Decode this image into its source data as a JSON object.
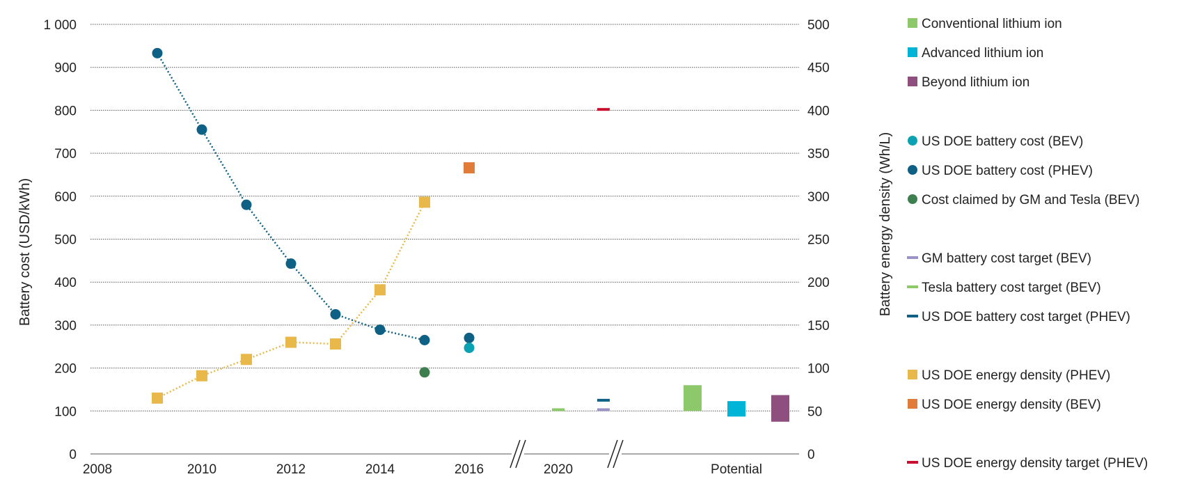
{
  "chart_data": {
    "type": "scatter",
    "title": "",
    "ylabel": "Battery cost (USD/kWh)",
    "y2label": "Battery energy density (Wh/L)",
    "ylim": [
      0,
      1000
    ],
    "y2lim": [
      0,
      500
    ],
    "y_ticks": [
      "0",
      "100",
      "200",
      "300",
      "400",
      "500",
      "600",
      "700",
      "800",
      "900",
      "1 000"
    ],
    "y2_ticks": [
      "0",
      "50",
      "100",
      "150",
      "200",
      "250",
      "300",
      "350",
      "400",
      "450",
      "500"
    ],
    "x_ticks": [
      "2008",
      "2010",
      "2012",
      "2014",
      "2016",
      "2020",
      "Potential"
    ],
    "grid": "horizontal",
    "legend_position": "right",
    "series": [
      {
        "name": "US DOE battery cost (PHEV)",
        "axis": "left",
        "color": "#0e6084",
        "marker": "circle",
        "line": "dotted",
        "x": [
          "2009",
          "2010",
          "2011",
          "2012",
          "2013",
          "2014",
          "2015"
        ],
        "y": [
          933,
          755,
          580,
          443,
          325,
          289,
          265
        ]
      },
      {
        "name": "US DOE battery cost (PHEV)",
        "axis": "left",
        "color": "#0e6084",
        "marker": "circle",
        "line": "none",
        "x": [
          "2016"
        ],
        "y": [
          270
        ]
      },
      {
        "name": "US DOE battery cost (BEV)",
        "axis": "left",
        "color": "#0aa1b2",
        "marker": "circle",
        "line": "none",
        "x": [
          "2016"
        ],
        "y": [
          247
        ]
      },
      {
        "name": "Cost claimed by GM and Tesla (BEV)",
        "axis": "left",
        "color": "#3f7f4f",
        "marker": "circle",
        "line": "none",
        "x": [
          "2015"
        ],
        "y": [
          190
        ]
      },
      {
        "name": "US DOE energy density (PHEV)",
        "axis": "right",
        "color": "#e8b84a",
        "marker": "square",
        "line": "dotted",
        "x": [
          "2009",
          "2010",
          "2011",
          "2012",
          "2013",
          "2014",
          "2015"
        ],
        "y": [
          65,
          91,
          110,
          130,
          128,
          191,
          293
        ]
      },
      {
        "name": "US DOE energy density (BEV)",
        "axis": "right",
        "color": "#e07b39",
        "marker": "square",
        "line": "none",
        "x": [
          "2016"
        ],
        "y": [
          333
        ]
      },
      {
        "name": "Tesla battery cost target (BEV)",
        "axis": "left",
        "color": "#8dc96b",
        "marker": "dash",
        "x": [
          "2020"
        ],
        "y": [
          103
        ]
      },
      {
        "name": "GM battery cost target (BEV)",
        "axis": "left",
        "color": "#9b93c5",
        "marker": "dash",
        "x": [
          "2021"
        ],
        "y": [
          103
        ]
      },
      {
        "name": "US DOE battery cost target (PHEV)",
        "axis": "left",
        "color": "#0e6084",
        "marker": "dash",
        "x": [
          "2021"
        ],
        "y": [
          125
        ]
      },
      {
        "name": "US DOE energy density target (PHEV)",
        "axis": "right",
        "color": "#c8102e",
        "marker": "dash",
        "x": [
          "2021"
        ],
        "y": [
          401
        ]
      },
      {
        "name": "Conventional lithium ion",
        "axis": "left",
        "color": "#8dc96b",
        "marker": "range",
        "x": [
          "Potential"
        ],
        "low": 100,
        "high": 160
      },
      {
        "name": "Advanced lithium ion",
        "axis": "left",
        "color": "#00b4d8",
        "marker": "range",
        "x": [
          "Potential"
        ],
        "low": 87,
        "high": 123
      },
      {
        "name": "Beyond lithium ion",
        "axis": "left",
        "color": "#8e4e7e",
        "marker": "range",
        "x": [
          "Potential"
        ],
        "low": 75,
        "high": 137
      }
    ],
    "legend": [
      {
        "label": "Conventional lithium ion",
        "color": "#8dc96b",
        "symbol": "square"
      },
      {
        "label": "Advanced lithium ion",
        "color": "#00b4d8",
        "symbol": "square"
      },
      {
        "label": "Beyond lithium ion",
        "color": "#8e4e7e",
        "symbol": "square"
      },
      {
        "label": "US DOE battery cost (BEV)",
        "color": "#0aa1b2",
        "symbol": "circle"
      },
      {
        "label": "US DOE battery cost (PHEV)",
        "color": "#0e6084",
        "symbol": "circle"
      },
      {
        "label": "Cost claimed by GM and Tesla (BEV)",
        "color": "#3f7f4f",
        "symbol": "circle"
      },
      {
        "label": "GM battery cost target (BEV)",
        "color": "#9b93c5",
        "symbol": "dash"
      },
      {
        "label": "Tesla battery cost target (BEV)",
        "color": "#8dc96b",
        "symbol": "dash"
      },
      {
        "label": "US DOE battery cost target (PHEV)",
        "color": "#0e6084",
        "symbol": "dash"
      },
      {
        "label": "US DOE energy density (PHEV)",
        "color": "#e8b84a",
        "symbol": "square"
      },
      {
        "label": "US DOE energy density (BEV)",
        "color": "#e07b39",
        "symbol": "square"
      },
      {
        "label": "US DOE energy density target (PHEV)",
        "color": "#c8102e",
        "symbol": "dash"
      }
    ]
  }
}
